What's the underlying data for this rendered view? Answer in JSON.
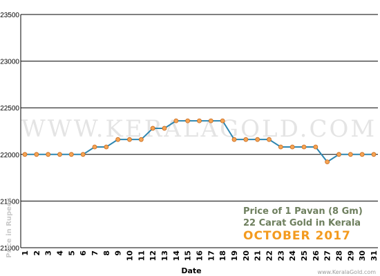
{
  "chart_data": {
    "type": "line",
    "title": "",
    "xlabel": "Date",
    "ylabel": "Price in Rupees",
    "x": [
      1,
      2,
      3,
      4,
      5,
      6,
      7,
      8,
      9,
      10,
      11,
      12,
      13,
      14,
      15,
      16,
      17,
      18,
      19,
      20,
      21,
      22,
      23,
      24,
      25,
      26,
      27,
      28,
      29,
      30,
      31
    ],
    "series": [
      {
        "values": [
          22000,
          22000,
          22000,
          22000,
          22000,
          22000,
          22080,
          22080,
          22160,
          22160,
          22160,
          22280,
          22280,
          22360,
          22360,
          22360,
          22360,
          22360,
          22160,
          22160,
          22160,
          22160,
          22080,
          22080,
          22080,
          22080,
          21920,
          22000,
          22000,
          22000,
          22000
        ]
      }
    ],
    "ylim": [
      21000,
      23500
    ],
    "yticks": [
      21000,
      21500,
      22000,
      22500,
      23000,
      23500
    ],
    "grid": "horizontal",
    "line_color": "#2e86b0",
    "marker_color": "#f5a455",
    "annotation": {
      "line1": "Price of 1 Pavan (8 Gm)",
      "line2": "22 Carat Gold in Kerala",
      "line3": "OCTOBER 2017"
    },
    "watermark": "WWW.KERALAGOLD.COM",
    "credit": "www.KeralaGold.com"
  }
}
